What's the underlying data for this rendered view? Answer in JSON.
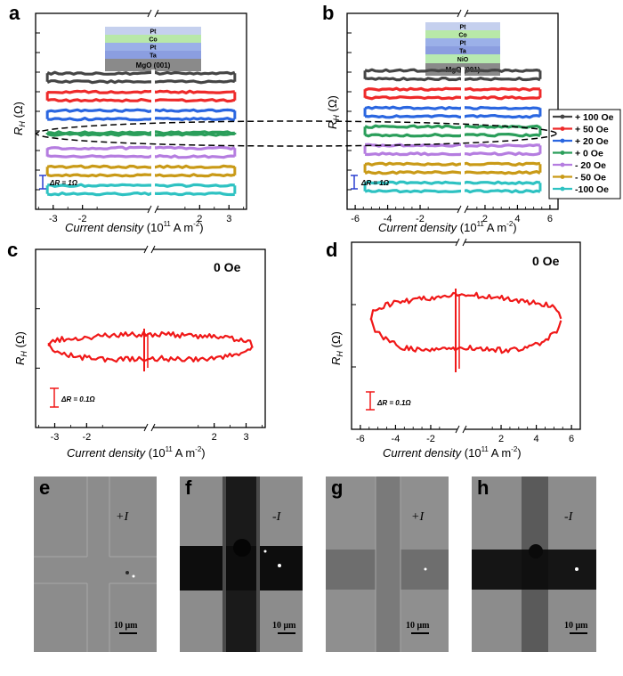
{
  "colors": {
    "plus100": "#454545",
    "plus50": "#ee2a2a",
    "plus20": "#2a66e0",
    "zero": "#2a9e5a",
    "minus20": "#b57de0",
    "minus50": "#c99a17",
    "minus100": "#2ec2c2",
    "loop_red": "#f01818",
    "scale_blue": "#2a3fd0",
    "oval": "#000000"
  },
  "panels": {
    "a": {
      "letter": "a"
    },
    "b": {
      "letter": "b"
    },
    "c": {
      "letter": "c",
      "field": "0 Oe"
    },
    "d": {
      "letter": "d",
      "field": "0 Oe"
    }
  },
  "legend": [
    "+ 100 Oe",
    "+ 50 Oe",
    "+ 20 Oe",
    "+  0 Oe",
    "- 20 Oe",
    "- 50 Oe",
    "-100 Oe"
  ],
  "stack_a": [
    "Pt",
    "Co",
    "Pt",
    "Ta",
    "MgO (001)"
  ],
  "stack_b": [
    "Pt",
    "Co",
    "Pt",
    "Ta",
    "NiO",
    "MgO (001)"
  ],
  "scalebars": {
    "a": "ΔR = 1Ω",
    "b": "ΔR = 1Ω",
    "c": "ΔR = 0.1Ω",
    "d": "ΔR = 0.1Ω"
  },
  "axis": {
    "ylabel_var": "R",
    "ylabel_sub": "H",
    "ylabel_unit": " (Ω)",
    "xlabel_main": "Current density",
    "xlabel_unit_pre": " (10",
    "xlabel_exp": "11",
    "xlabel_unit_post": " A m",
    "xlabel_exp2": "-2",
    "xlabel_close": ")"
  },
  "micrographs": [
    {
      "letter": "e",
      "current": "+I",
      "scale": "10 μm"
    },
    {
      "letter": "f",
      "current": "-I",
      "scale": "10 μm"
    },
    {
      "letter": "g",
      "current": "+I",
      "scale": "10 μm"
    },
    {
      "letter": "h",
      "current": "-I",
      "scale": "10 μm"
    }
  ],
  "chart_data": [
    {
      "panel": "a",
      "type": "line",
      "xlabel": "Current density (10^11 A m^-2)",
      "ylabel": "R_H (Ω)",
      "x_ticks": [
        -3,
        -2,
        2,
        3
      ],
      "axis_break": true,
      "xlim": [
        -3.6,
        3.6
      ],
      "series": [
        {
          "name": "+ 100 Oe",
          "x": [
            -3.2,
            3.2
          ],
          "offset": 3,
          "loop_height": 0.45
        },
        {
          "name": "+ 50 Oe",
          "x": [
            -3.2,
            3.2
          ],
          "offset": 2,
          "loop_height": 0.45
        },
        {
          "name": "+ 20 Oe",
          "x": [
            -3.2,
            3.2
          ],
          "offset": 1,
          "loop_height": 0.45
        },
        {
          "name": "+  0 Oe",
          "x": [
            -3.2,
            3.2
          ],
          "offset": 0,
          "loop_height": 0.1
        },
        {
          "name": "- 20 Oe",
          "x": [
            -3.2,
            3.2
          ],
          "offset": -1,
          "loop_height": 0.45
        },
        {
          "name": "- 50 Oe",
          "x": [
            -3.2,
            3.2
          ],
          "offset": -2,
          "loop_height": 0.45
        },
        {
          "name": "-100 Oe",
          "x": [
            -3.2,
            3.2
          ],
          "offset": -3,
          "loop_height": 0.45
        }
      ]
    },
    {
      "panel": "b",
      "type": "line",
      "xlabel": "Current density (10^11 A m^-2)",
      "ylabel": "R_H (Ω)",
      "x_ticks": [
        -6,
        -4,
        -2,
        2,
        4,
        6
      ],
      "axis_break": true,
      "xlim": [
        -6.5,
        6.5
      ],
      "series": [
        {
          "name": "+ 100 Oe",
          "x": [
            -5.4,
            5.4
          ],
          "offset": 3,
          "loop_height": 0.45
        },
        {
          "name": "+ 50 Oe",
          "x": [
            -5.4,
            5.4
          ],
          "offset": 2,
          "loop_height": 0.45
        },
        {
          "name": "+ 20 Oe",
          "x": [
            -5.4,
            5.4
          ],
          "offset": 1,
          "loop_height": 0.45
        },
        {
          "name": "+  0 Oe",
          "x": [
            -5.4,
            5.4
          ],
          "offset": 0,
          "loop_height": 0.45
        },
        {
          "name": "- 20 Oe",
          "x": [
            -5.4,
            5.4
          ],
          "offset": -1,
          "loop_height": 0.45
        },
        {
          "name": "- 50 Oe",
          "x": [
            -5.4,
            5.4
          ],
          "offset": -2,
          "loop_height": 0.45
        },
        {
          "name": "-100 Oe",
          "x": [
            -5.4,
            5.4
          ],
          "offset": -3,
          "loop_height": 0.45
        }
      ]
    },
    {
      "panel": "c",
      "type": "line",
      "xlabel": "Current density (10^11 A m^-2)",
      "ylabel": "R_H (Ω)",
      "x_ticks": [
        -3,
        -2,
        2,
        3
      ],
      "axis_break": true,
      "xlim": [
        -3.6,
        3.6
      ],
      "annotation": "0 Oe",
      "series": [
        {
          "name": "0 Oe",
          "x": [
            -3.2,
            3.2
          ],
          "loop_height_ohm": 0.08
        }
      ]
    },
    {
      "panel": "d",
      "type": "line",
      "xlabel": "Current density (10^11 A m^-2)",
      "ylabel": "R_H (Ω)",
      "x_ticks": [
        -6,
        -4,
        -2,
        2,
        4,
        6
      ],
      "axis_break": true,
      "xlim": [
        -6.5,
        6.5
      ],
      "annotation": "0 Oe",
      "series": [
        {
          "name": "0 Oe",
          "x": [
            -5.4,
            5.4
          ],
          "loop_height_ohm": 0.3
        }
      ]
    }
  ]
}
